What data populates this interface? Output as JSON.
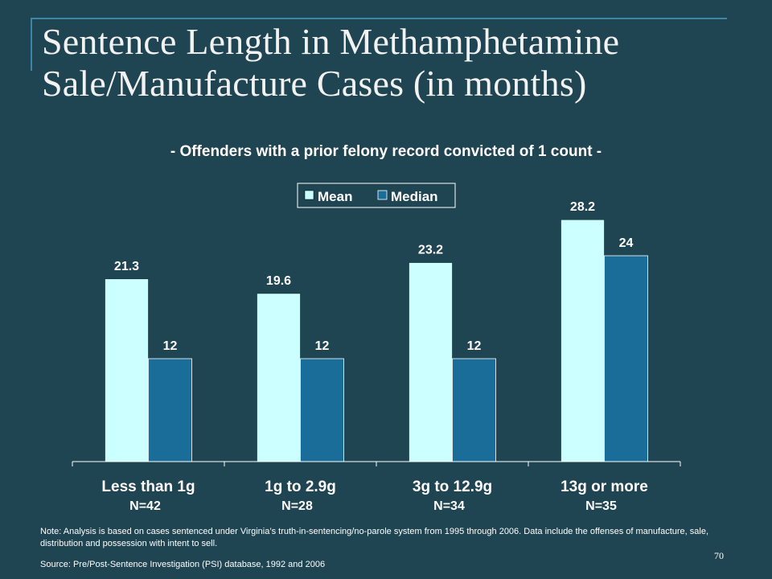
{
  "slide": {
    "title": "Sentence Length in Methamphetamine Sale/Manufacture Cases (in months)",
    "subtitle": "- Offenders with a prior felony record convicted of 1 count -",
    "note": "Note: Analysis is based on cases sentenced under Virginia’s truth-in-sentencing/no-parole system from 1995 through 2006. Data include the offenses of manufacture, sale, distribution and possession with intent to sell.",
    "source": "Source: Pre/Post-Sentence Investigation (PSI) database, 1992 and 2006",
    "page_number": "70"
  },
  "chart_data": {
    "type": "bar",
    "categories": [
      "Less than 1g",
      "1g to 2.9g",
      "3g to 12.9g",
      "13g or more"
    ],
    "sample_sizes": [
      "N=42",
      "N=28",
      "N=34",
      "N=35"
    ],
    "series": [
      {
        "name": "Mean",
        "values": [
          21.3,
          19.6,
          23.2,
          28.2
        ],
        "color": "#ccffff"
      },
      {
        "name": "Median",
        "values": [
          12,
          12,
          12,
          24
        ],
        "color": "#1a6d99"
      }
    ],
    "ylim": [
      0,
      30
    ],
    "grid": false,
    "legend_position": "top-center"
  }
}
